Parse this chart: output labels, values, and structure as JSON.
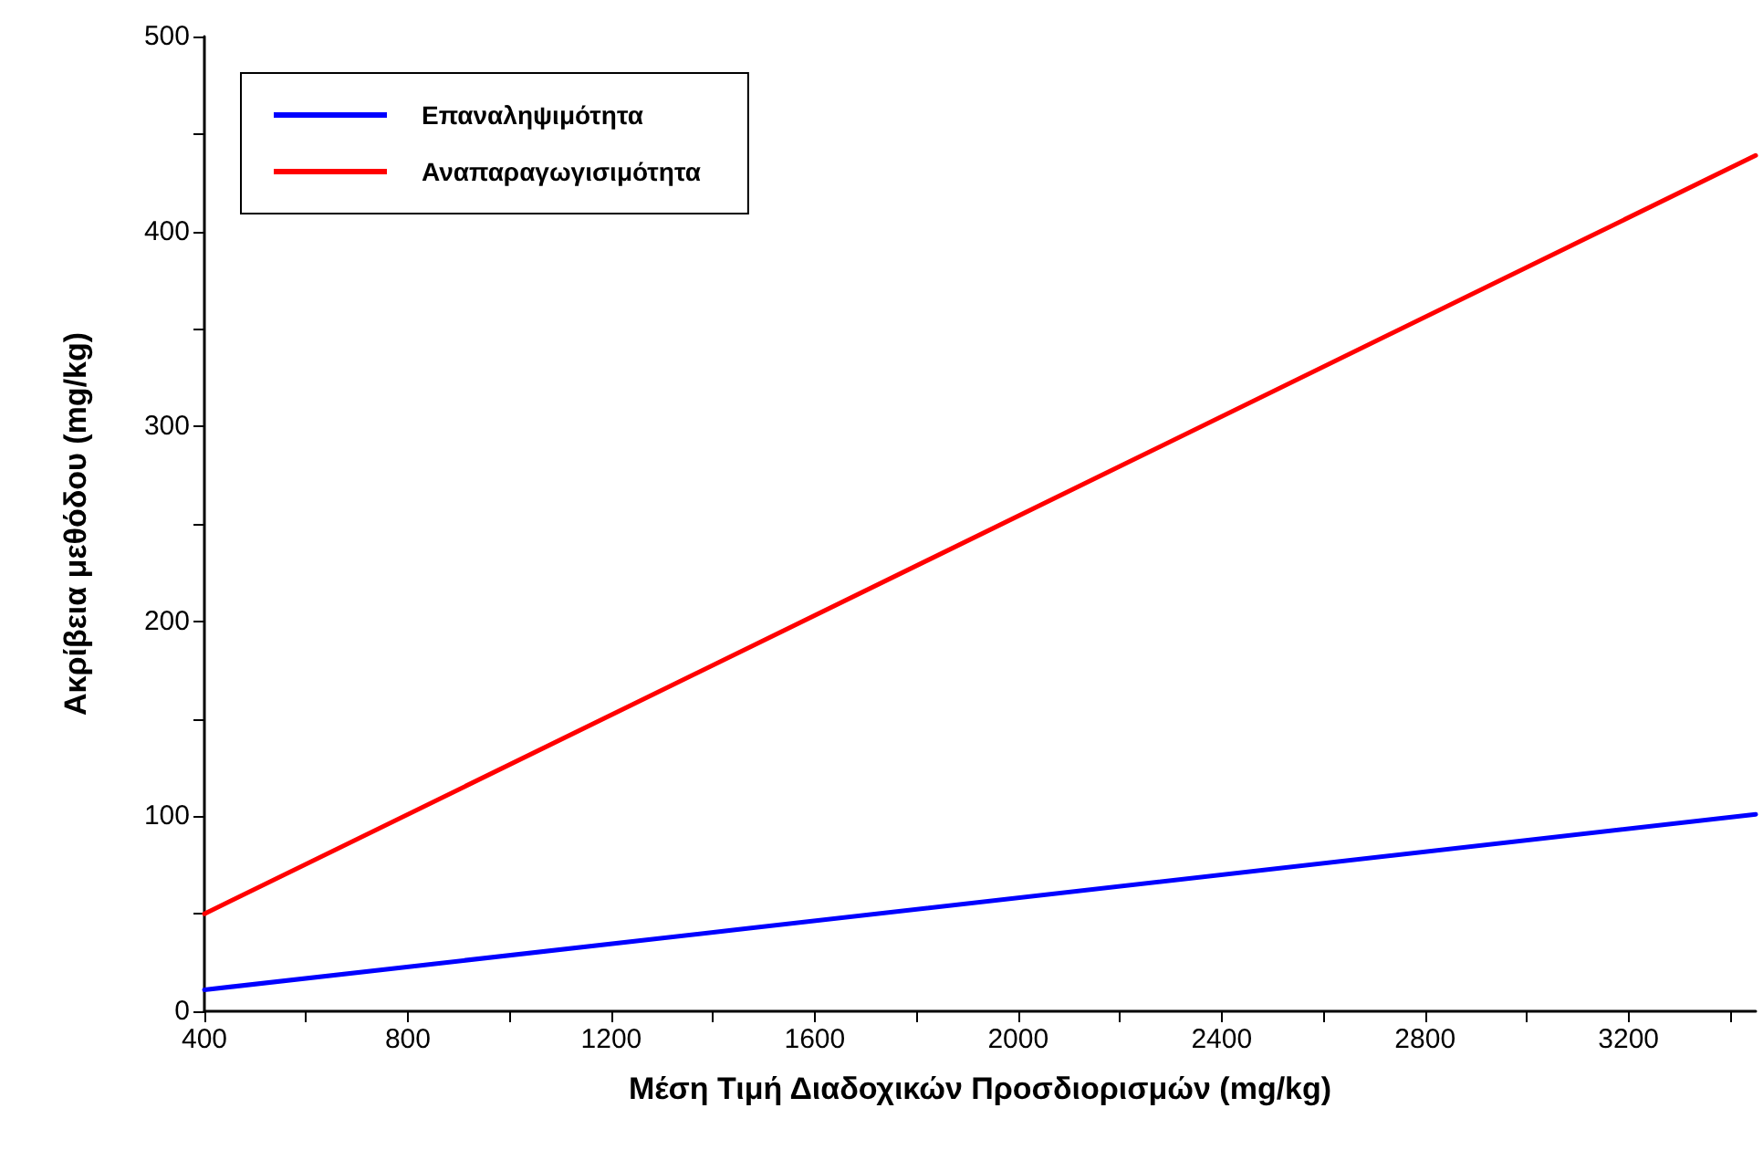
{
  "chart_data": {
    "type": "line",
    "xlabel": "Μέση Τιμή Διαδοχικών Προσδιορισμών (mg/kg)",
    "ylabel": "Ακρίβεια μεθόδου (mg/kg)",
    "xlim": [
      400,
      3450
    ],
    "ylim": [
      0,
      500
    ],
    "xticks": [
      400,
      {
        "value": 600,
        "label": null
      },
      800,
      {
        "value": 1000,
        "label": null
      },
      1200,
      {
        "value": 1400,
        "label": null
      },
      1600,
      {
        "value": 1800,
        "label": null
      },
      2000,
      {
        "value": 2200,
        "label": null
      },
      2400,
      {
        "value": 2600,
        "label": null
      },
      2800,
      {
        "value": 3000,
        "label": null
      },
      3200,
      {
        "value": 3400,
        "label": null
      }
    ],
    "yticks": [
      0,
      {
        "value": 50,
        "label": null
      },
      100,
      {
        "value": 150,
        "label": null
      },
      200,
      {
        "value": 250,
        "label": null
      },
      300,
      {
        "value": 350,
        "label": null
      },
      400,
      {
        "value": 450,
        "label": null
      },
      500
    ],
    "x": [
      400,
      3450
    ],
    "series": [
      {
        "name": "Επαναληψιμότητα",
        "color": "#0000ff",
        "values": [
          11,
          101
        ]
      },
      {
        "name": "Αναπαραγωγισιμότητα",
        "color": "#ff0000",
        "values": [
          50,
          439
        ]
      }
    ],
    "legend": "top left",
    "grid": false,
    "marker": "none",
    "line_style": "solid"
  }
}
